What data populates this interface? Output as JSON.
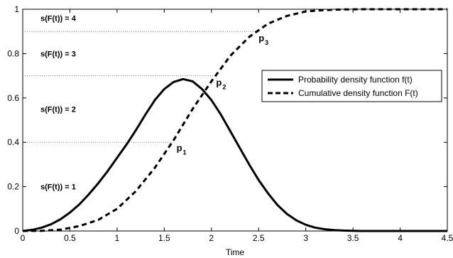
{
  "chart_data": {
    "type": "line",
    "xlabel": "Time",
    "ylabel": "",
    "xlim": [
      0,
      4.5
    ],
    "ylim": [
      0,
      1
    ],
    "grid": false,
    "legend_position": "right",
    "xticks": [
      "0",
      "0.5",
      "1",
      "1.5",
      "2",
      "2.5",
      "3",
      "3.5",
      "4",
      "4.5"
    ],
    "yticks": [
      "0",
      "0.2",
      "0.4",
      "0.6",
      "0.8",
      "1"
    ],
    "series": [
      {
        "name": "Probability density function f(t)",
        "style": "solid",
        "x": [
          0,
          0.1,
          0.2,
          0.3,
          0.4,
          0.5,
          0.6,
          0.7,
          0.8,
          0.9,
          1.0,
          1.1,
          1.2,
          1.3,
          1.4,
          1.5,
          1.6,
          1.7,
          1.8,
          1.9,
          2.0,
          2.1,
          2.2,
          2.3,
          2.4,
          2.5,
          2.6,
          2.7,
          2.8,
          2.9,
          3.0,
          3.1,
          3.2,
          3.3,
          3.4,
          3.5,
          3.6,
          3.8,
          4.0,
          4.5
        ],
        "y": [
          0,
          0.005,
          0.015,
          0.03,
          0.053,
          0.083,
          0.12,
          0.165,
          0.215,
          0.27,
          0.33,
          0.39,
          0.455,
          0.525,
          0.59,
          0.64,
          0.672,
          0.685,
          0.675,
          0.64,
          0.59,
          0.525,
          0.45,
          0.375,
          0.3,
          0.23,
          0.17,
          0.117,
          0.077,
          0.048,
          0.028,
          0.015,
          0.008,
          0.004,
          0.002,
          0.001,
          0,
          0,
          0,
          0
        ]
      },
      {
        "name": "Cumulative density function F(t)",
        "style": "dashed",
        "x": [
          0,
          0.2,
          0.4,
          0.6,
          0.8,
          1.0,
          1.2,
          1.4,
          1.6,
          1.8,
          2.0,
          2.2,
          2.4,
          2.6,
          2.8,
          3.0,
          3.2,
          3.4,
          3.6,
          4.0,
          4.5
        ],
        "y": [
          0,
          0.001,
          0.006,
          0.022,
          0.05,
          0.1,
          0.18,
          0.285,
          0.41,
          0.55,
          0.675,
          0.79,
          0.875,
          0.935,
          0.97,
          0.99,
          0.996,
          0.999,
          1.0,
          1.0,
          1.0
        ]
      }
    ],
    "reference_lines": [
      {
        "y": 0.4,
        "style": "dotted"
      },
      {
        "y": 0.7,
        "style": "dotted"
      },
      {
        "y": 0.9,
        "style": "dotted"
      }
    ],
    "region_labels": [
      {
        "text": "s(F(t)) = 4",
        "y": 0.96
      },
      {
        "text": "s(F(t)) = 3",
        "y": 0.8
      },
      {
        "text": "s(F(t)) = 2",
        "y": 0.55
      },
      {
        "text": "s(F(t)) = 1",
        "y": 0.2
      }
    ],
    "point_labels": [
      {
        "main": "p",
        "sub": "1",
        "x": 1.63,
        "y": 0.36
      },
      {
        "main": "p",
        "sub": "2",
        "x": 2.05,
        "y": 0.655
      },
      {
        "main": "p",
        "sub": "3",
        "x": 2.5,
        "y": 0.855
      }
    ]
  }
}
